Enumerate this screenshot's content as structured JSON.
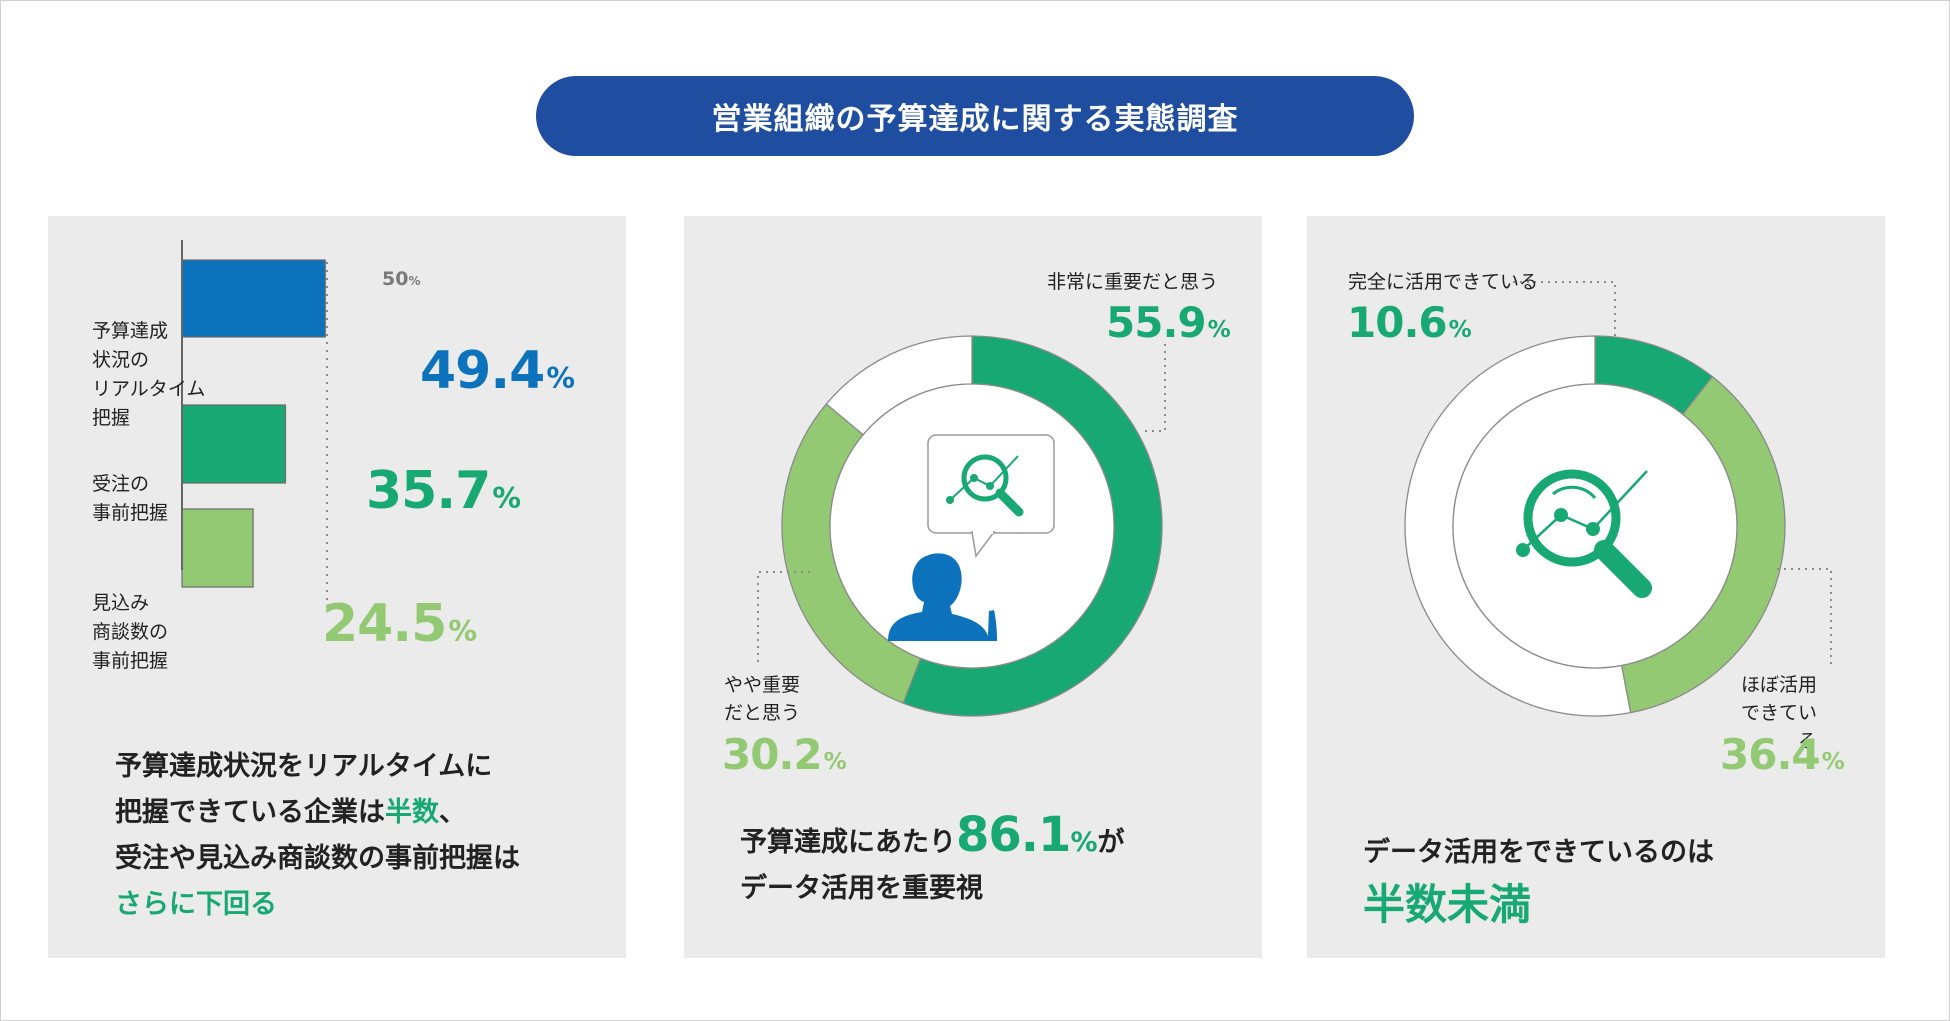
{
  "title": "営業組織の予算達成に関する実態調査",
  "colors": {
    "title_bg": "#1f4ea1",
    "blue": "#0b72bb",
    "green": "#17a874",
    "light_green": "#94c973",
    "panel_bg": "#ebebeb"
  },
  "chart_data": [
    {
      "type": "bar",
      "orientation": "horizontal",
      "reference_label": "50",
      "reference_unit": "%",
      "reference_value": 50,
      "categories": [
        "予算達成\n状況の\nリアルタイム\n把握",
        "受注の\n事前把握",
        "見込み\n商談数の\n事前把握"
      ],
      "values": [
        49.4,
        35.7,
        24.5
      ],
      "value_labels": [
        "49.4",
        "35.7",
        "24.5"
      ],
      "unit": "%",
      "bar_colors": [
        "#0b72bb",
        "#17a874",
        "#94c973"
      ],
      "xlim": [
        0,
        50
      ],
      "caption": {
        "line1": "予算達成状況をリアルタイムに",
        "line2_a": "把握できている企業は",
        "line2_hl": "半数",
        "line2_b": "、",
        "line3": "受注や見込み商談数の事前把握は",
        "line4_hl": "さらに下回る"
      }
    },
    {
      "type": "pie",
      "donut": true,
      "slices": [
        {
          "label": "非常に重要だと思う",
          "value": 55.9,
          "value_label": "55.9",
          "color": "#17a874"
        },
        {
          "label": "やや重要\nだと思う",
          "value": 30.2,
          "value_label": "30.2",
          "color": "#94c973"
        },
        {
          "label": "",
          "value": 13.9,
          "color": "#ffffff"
        }
      ],
      "unit": "%",
      "icon": "person-with-analytics-bubble-icon",
      "caption": {
        "line1_a": "予算達成にあたり",
        "line1_value": "86.1",
        "line1_unit": "%",
        "line1_b": "が",
        "line2": "データ活用を重要視"
      }
    },
    {
      "type": "pie",
      "donut": true,
      "slices": [
        {
          "label": "完全に活用できている",
          "value": 10.6,
          "value_label": "10.6",
          "color": "#17a874"
        },
        {
          "label": "ほぼ活用\nできている",
          "value": 36.4,
          "value_label": "36.4",
          "color": "#94c973"
        },
        {
          "label": "",
          "value": 53.0,
          "color": "#ffffff"
        }
      ],
      "unit": "%",
      "icon": "magnifier-analytics-icon",
      "caption": {
        "line1": "データ活用をできているのは",
        "line2_hl": "半数未満"
      }
    }
  ]
}
